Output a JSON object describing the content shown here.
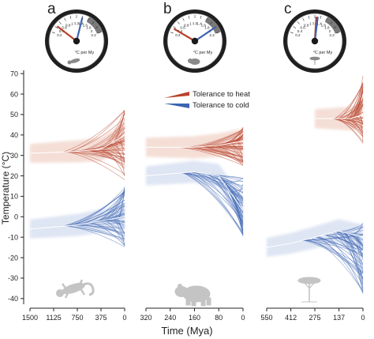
{
  "colors": {
    "heat": "#b8412c",
    "cold": "#3d64b2",
    "heat_light": "#e8b7a6",
    "cold_light": "#b7c6e6",
    "silhouette": "#c4c4c4",
    "gauge_bezel": "#1f1f1f",
    "gauge_arc": "#7a7a7a"
  },
  "icons": [
    "gecko-icon",
    "bear-icon",
    "acacia-tree-icon"
  ],
  "legend": {
    "heat": "Tolerance to heat",
    "cold": "Tolerance to cold"
  },
  "gauge_scale": [
    "0.2",
    "0.4",
    "0.6",
    "0.8",
    "1",
    "1.2",
    "1.4",
    "1.6",
    "1.8",
    "2",
    "2.2"
  ],
  "gauge_unit": "°C per My",
  "chart_data": {
    "type": "line",
    "ylabel": "Temperature (°C)",
    "xlabel": "Time (Mya)",
    "ylim": [
      -42,
      72
    ],
    "yticks": [
      "70",
      "60",
      "50",
      "40",
      "30",
      "20",
      "10",
      "0",
      "-10",
      "-20",
      "-30",
      "-40"
    ],
    "panels": [
      {
        "letter": "a",
        "xlim": [
          1500,
          0
        ],
        "xticks": [
          "1500",
          "1125",
          "750",
          "375",
          "0"
        ],
        "gauge": {
          "heat_rate": 0.45,
          "cold_rate": 1.4
        },
        "series": [
          {
            "name": "Tolerance to heat",
            "x": [
              1500,
              1125,
              750,
              375,
              0
            ],
            "y": [
              31,
              31.5,
              32,
              33,
              40
            ],
            "spread_end": [
              18,
              55
            ]
          },
          {
            "name": "Tolerance to cold",
            "x": [
              1500,
              1125,
              750,
              375,
              0
            ],
            "y": [
              -6,
              -5,
              -4,
              -2,
              0
            ],
            "spread_end": [
              -15,
              15
            ]
          }
        ]
      },
      {
        "letter": "b",
        "xlim": [
          320,
          0
        ],
        "xticks": [
          "320",
          "240",
          "160",
          "80",
          "0"
        ],
        "gauge": {
          "heat_rate": 0.35,
          "cold_rate": 2.0
        },
        "series": [
          {
            "name": "Tolerance to heat",
            "x": [
              320,
              240,
              160,
              80,
              0
            ],
            "y": [
              34,
              34,
              34,
              35,
              37
            ],
            "spread_end": [
              25,
              44
            ]
          },
          {
            "name": "Tolerance to cold",
            "x": [
              320,
              240,
              160,
              80,
              0
            ],
            "y": [
              20,
              21,
              22,
              20,
              3
            ],
            "spread_end": [
              -10,
              20
            ]
          }
        ]
      },
      {
        "letter": "c",
        "xlim": [
          550,
          0
        ],
        "xticks": [
          "550",
          "412",
          "275",
          "137",
          "0"
        ],
        "gauge": {
          "heat_rate": 1.25,
          "cold_rate": 1.3
        },
        "series": [
          {
            "name": "Tolerance to heat",
            "x": [
              275,
              205,
              137,
              70,
              0
            ],
            "y": [
              48,
              48,
              48,
              48,
              50
            ],
            "spread_end": [
              35,
              70
            ]
          },
          {
            "name": "Tolerance to cold",
            "x": [
              550,
              412,
              275,
              137,
              0
            ],
            "y": [
              -15,
              -13,
              -10,
              -7,
              -10
            ],
            "spread_end": [
              -38,
              -3
            ]
          }
        ]
      }
    ]
  }
}
